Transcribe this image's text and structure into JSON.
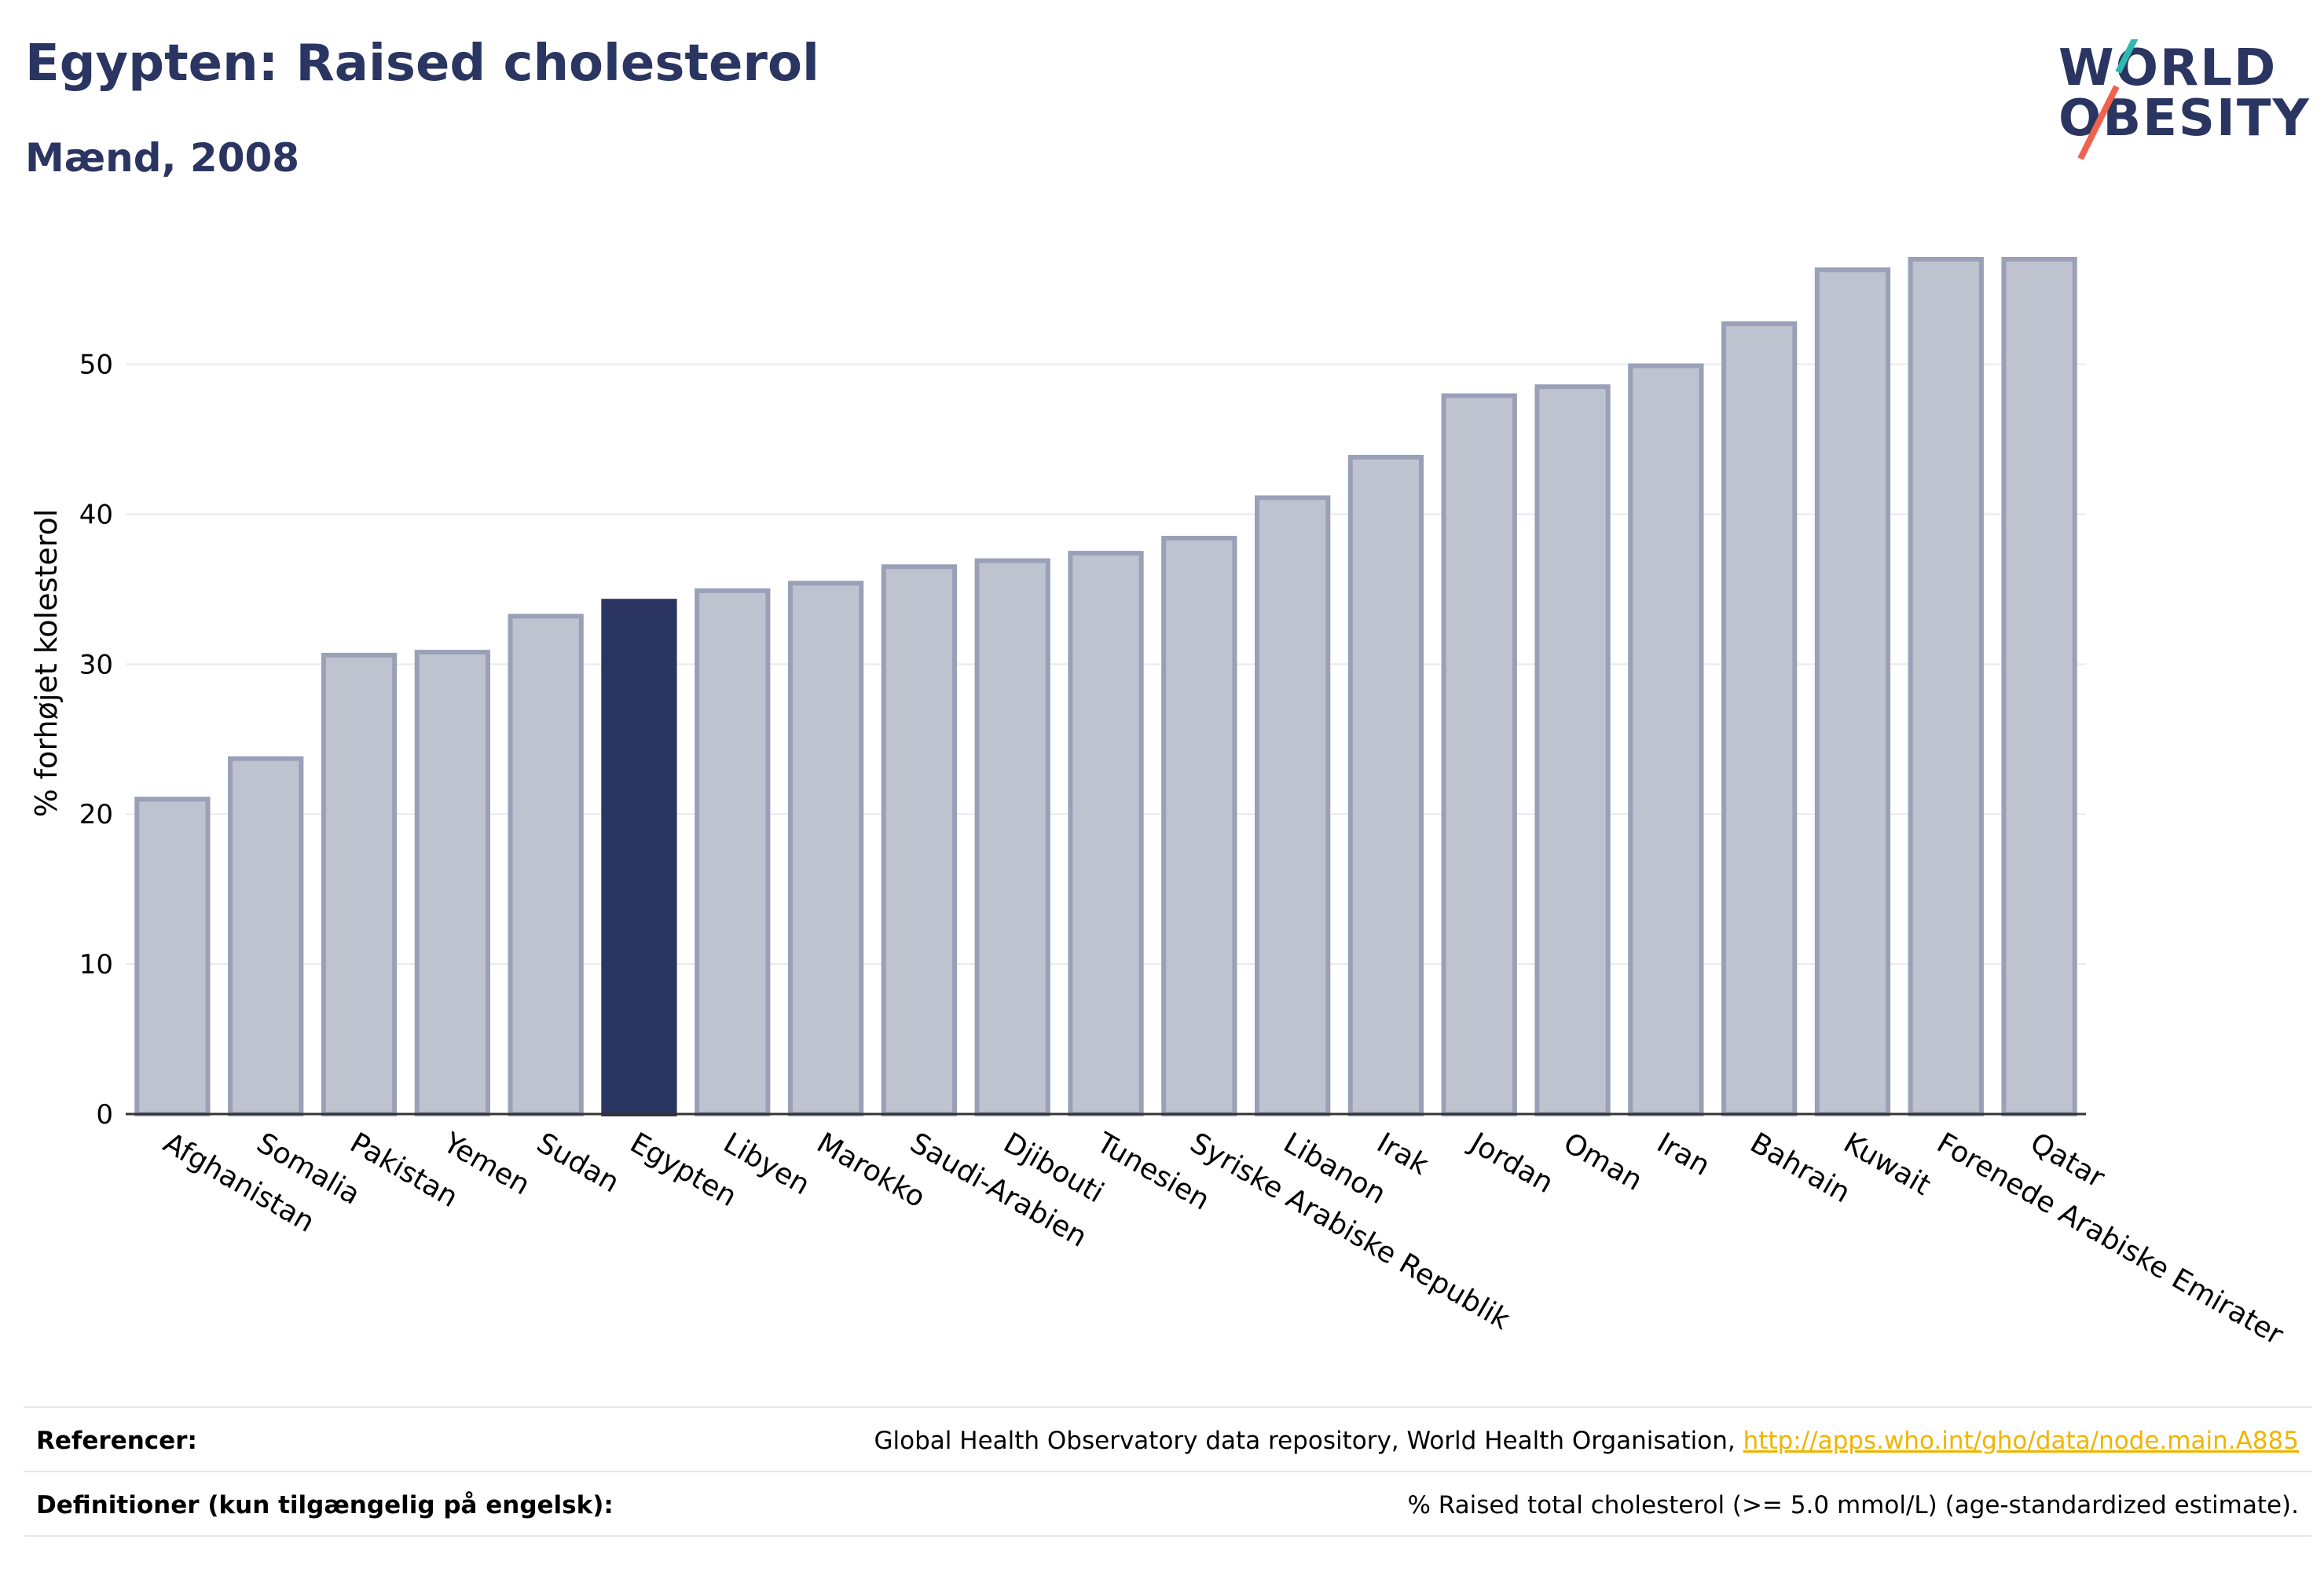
{
  "header": {
    "title": "Egypten: Raised cholesterol",
    "subtitle": "Mænd, 2008"
  },
  "logo": {
    "line1": "WORLD",
    "line2": "OBESITY",
    "brand_color": "#2b3561",
    "accent_colors": [
      "#2fb9b0",
      "#f0624d"
    ]
  },
  "chart_data": {
    "type": "bar",
    "title": "",
    "xlabel": "",
    "ylabel": "% forhøjet kolesterol",
    "ylim": [
      0,
      57
    ],
    "yticks": [
      0,
      10,
      20,
      30,
      40,
      50
    ],
    "grid": true,
    "highlight_category": "Egypten",
    "highlight_color": "#2b3561",
    "bar_color": "#bfc3d0",
    "bar_edge_color": "#9aa0b8",
    "categories": [
      "Afghanistan",
      "Somalia",
      "Pakistan",
      "Yemen",
      "Sudan",
      "Egypten",
      "Libyen",
      "Marokko",
      "Saudi-Arabien",
      "Djibouti",
      "Tunesien",
      "Syriske Arabiske Republik",
      "Libanon",
      "Irak",
      "Jordan",
      "Oman",
      "Iran",
      "Bahrain",
      "Kuwait",
      "Forenede Arabiske Emirater",
      "Qatar"
    ],
    "values": [
      21.0,
      23.7,
      30.6,
      30.8,
      33.2,
      34.2,
      34.9,
      35.4,
      36.5,
      36.9,
      37.4,
      38.4,
      41.1,
      43.8,
      47.9,
      48.5,
      49.9,
      52.7,
      56.3,
      57.0,
      57.0
    ]
  },
  "footer": {
    "references_label": "Referencer:",
    "references_text": "Global Health Observatory data repository, World Health Organisation,",
    "references_link": "http://apps.who.int/gho/data/node.main.A885",
    "definitions_label": "Definitioner (kun tilgængelig på engelsk):",
    "definitions_text": "% Raised total cholesterol (>= 5.0 mmol/L) (age-standardized estimate)."
  }
}
